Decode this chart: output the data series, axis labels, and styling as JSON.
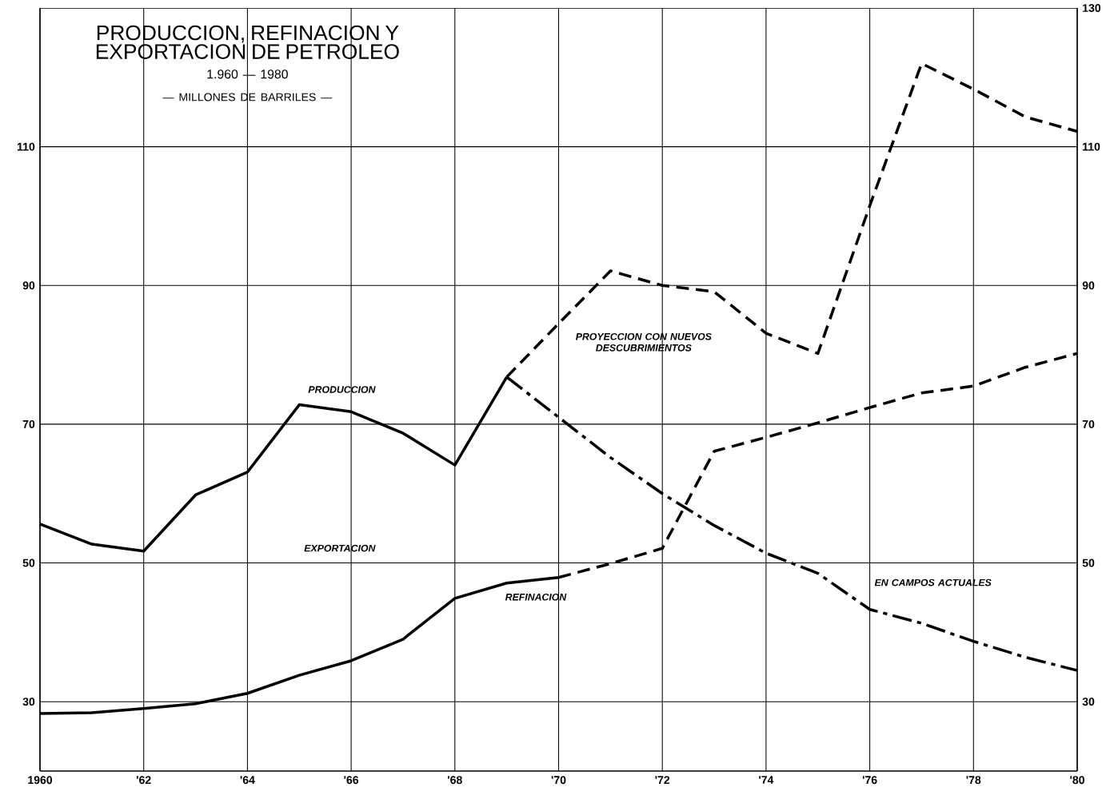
{
  "chart_data": {
    "type": "line",
    "title": "PRODUCCION, REFINACION Y EXPORTACION DE PETROLEO",
    "subtitle": "1.960 — 1980",
    "ylabel": "— MILLONES DE BARRILES —",
    "xlim": [
      1960,
      1980
    ],
    "xticks": [
      {
        "value": 1960,
        "label": "1960"
      },
      {
        "value": 1962,
        "label": "'62"
      },
      {
        "value": 1964,
        "label": "'64"
      },
      {
        "value": 1966,
        "label": "'66"
      },
      {
        "value": 1968,
        "label": "'68"
      },
      {
        "value": 1970,
        "label": "'70"
      },
      {
        "value": 1972,
        "label": "'72"
      },
      {
        "value": 1974,
        "label": "'74"
      },
      {
        "value": 1976,
        "label": "'76"
      },
      {
        "value": 1978,
        "label": "'78"
      },
      {
        "value": 1980,
        "label": "'80"
      }
    ],
    "ylim": [
      20,
      130
    ],
    "yticks": [
      30,
      50,
      70,
      90,
      110
    ],
    "y2lim": [
      20,
      130
    ],
    "y2ticks": [
      30,
      50,
      70,
      90,
      110,
      130
    ],
    "grid": true,
    "marker": "none",
    "series": [
      {
        "name": "PRODUCCION",
        "color": "#000000",
        "line_style": "solid",
        "x": [
          1960,
          1961,
          1962,
          1963,
          1964,
          1965,
          1966,
          1967,
          1968,
          1969
        ],
        "values": [
          55.6,
          52.7,
          51.7,
          59.8,
          63.1,
          72.8,
          71.8,
          68.7,
          64.1,
          76.8
        ]
      },
      {
        "name": "PROYECCION CON NUEVOS DESCUBRIMIENTOS",
        "color": "#000000",
        "line_style": "dashed",
        "x": [
          1969,
          1970,
          1971,
          1972,
          1973,
          1974,
          1975,
          1976,
          1977,
          1978,
          1979,
          1980
        ],
        "values": [
          76.8,
          84.5,
          92.1,
          90.0,
          89.1,
          83.1,
          80.2,
          101.5,
          122.0,
          118.3,
          114.3,
          112.2
        ]
      },
      {
        "name": "EN CAMPOS ACTUALES",
        "color": "#000000",
        "line_style": "dashdot",
        "x": [
          1969,
          1970,
          1971,
          1972,
          1973,
          1974,
          1975,
          1976,
          1977,
          1978,
          1979,
          1980
        ],
        "values": [
          76.8,
          71.0,
          65.2,
          60.0,
          55.4,
          51.4,
          48.5,
          43.3,
          41.3,
          38.7,
          36.4,
          34.5
        ]
      },
      {
        "name": "REFINACION",
        "color": "#000000",
        "line_style": "solid",
        "x": [
          1960,
          1961,
          1962,
          1963,
          1964,
          1965,
          1966,
          1967,
          1968,
          1969,
          1970
        ],
        "values": [
          28.3,
          28.4,
          29.0,
          29.7,
          31.2,
          33.8,
          35.9,
          39.0,
          44.9,
          47.1,
          47.9
        ]
      },
      {
        "color": "#000000",
        "line_style": "dashed",
        "x": [
          1970,
          1971,
          1972,
          1973,
          1974,
          1975,
          1976,
          1977,
          1978,
          1979,
          1980
        ],
        "values": [
          47.9,
          49.9,
          52.1,
          66.1,
          68.1,
          70.2,
          72.4,
          74.5,
          75.5,
          78.2,
          80.2
        ]
      }
    ],
    "annotations": [
      "EXPORTACION"
    ]
  }
}
